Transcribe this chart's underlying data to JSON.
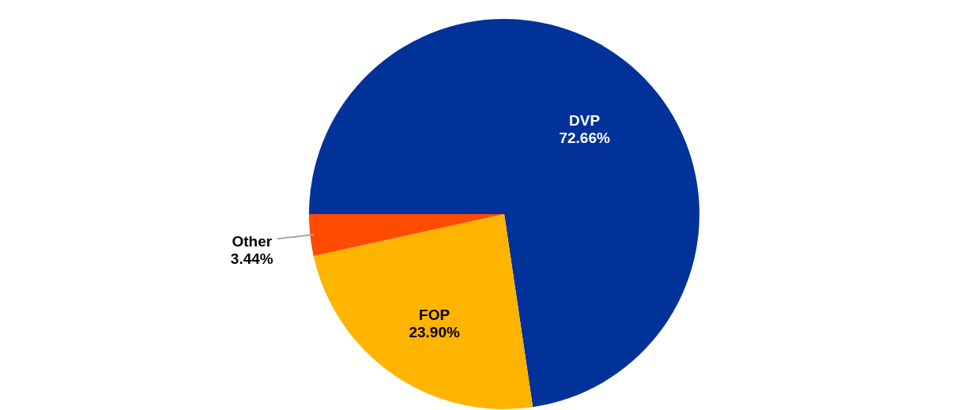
{
  "chart_data": {
    "type": "pie",
    "categories": [
      "DVP",
      "FOP",
      "Other"
    ],
    "values": [
      72.66,
      23.9,
      3.44
    ],
    "value_labels": [
      "72.66%",
      "23.90%",
      "3.44%"
    ],
    "colors": [
      "#003299",
      "#ffb400",
      "#ff4b00"
    ]
  }
}
